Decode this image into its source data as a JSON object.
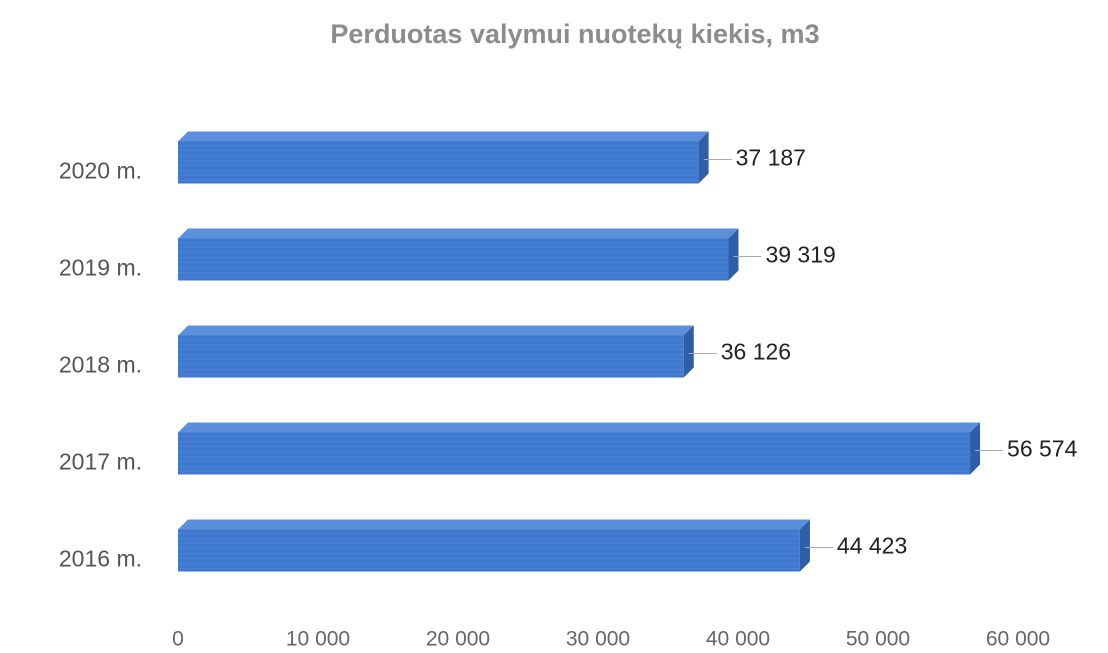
{
  "chart_data": {
    "type": "bar",
    "orientation": "horizontal",
    "title": "Perduotas valymui nuotekų kiekis, m3",
    "categories": [
      "2020 m.",
      "2019 m.",
      "2018 m.",
      "2017 m.",
      "2016 m."
    ],
    "values": [
      37187,
      39319,
      36126,
      56574,
      44423
    ],
    "value_labels": [
      "37 187",
      "39 319",
      "36 126",
      "56 574",
      "44 423"
    ],
    "color": "#3f78cf",
    "xlim": [
      0,
      60000
    ],
    "xticks": [
      0,
      {
        "value": 10000,
        "label": "10 000"
      },
      {
        "value": 20000,
        "label": "20 000"
      },
      {
        "value": 30000,
        "label": "30 000"
      },
      {
        "value": 40000,
        "label": "40 000"
      },
      {
        "value": 50000,
        "label": "50 000"
      },
      {
        "value": 60000,
        "label": "60 000"
      }
    ],
    "grid": false
  }
}
